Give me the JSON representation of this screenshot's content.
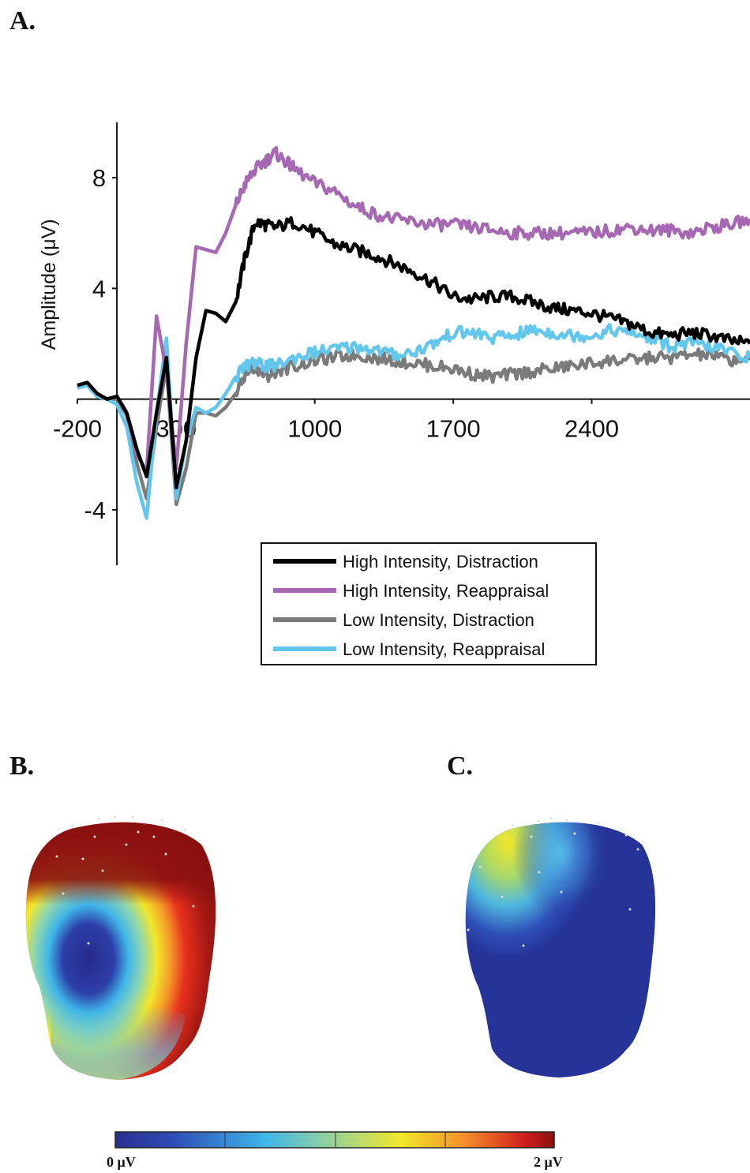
{
  "panels": {
    "a": "A.",
    "b": "B.",
    "c": "C."
  },
  "chart_data": {
    "type": "line",
    "title": "",
    "xlabel": "",
    "ylabel": "Amplitude (μV)",
    "xlim": [
      -200,
      3200
    ],
    "ylim": [
      -6,
      10
    ],
    "x_ticks": [
      -200,
      300,
      1000,
      1700,
      2400
    ],
    "y_ticks": [
      -4,
      4,
      8
    ],
    "legend_position": "bottom-center",
    "series": [
      {
        "name": "High Intensity, Distraction",
        "color": "#000000",
        "x": [
          -200,
          -150,
          -100,
          -50,
          0,
          50,
          100,
          150,
          200,
          250,
          300,
          350,
          400,
          450,
          500,
          550,
          600,
          650,
          700,
          750,
          800,
          900,
          1000,
          1100,
          1200,
          1300,
          1400,
          1500,
          1600,
          1700,
          1800,
          1900,
          2000,
          2100,
          2200,
          2300,
          2400,
          2500,
          2600,
          2700,
          2800,
          2900,
          3000,
          3100,
          3200
        ],
        "y": [
          0.5,
          0.6,
          0.2,
          0,
          0.1,
          -0.5,
          -1.8,
          -2.8,
          -0.5,
          1.5,
          -3.2,
          -1.5,
          1.5,
          3.2,
          3.1,
          2.8,
          3.5,
          5.2,
          6.4,
          6.3,
          6.2,
          6.4,
          6.0,
          5.6,
          5.4,
          5.2,
          4.9,
          4.6,
          4.2,
          3.7,
          3.6,
          3.7,
          3.7,
          3.5,
          3.3,
          3.2,
          3.1,
          2.9,
          2.7,
          2.4,
          2.3,
          2.4,
          2.3,
          2.1,
          2.0
        ]
      },
      {
        "name": "High Intensity, Reappraisal",
        "color": "#a668b2",
        "x": [
          -200,
          -150,
          -100,
          -50,
          0,
          50,
          100,
          150,
          200,
          250,
          300,
          350,
          400,
          450,
          500,
          550,
          600,
          650,
          700,
          750,
          800,
          850,
          900,
          1000,
          1100,
          1200,
          1300,
          1400,
          1500,
          1600,
          1700,
          1800,
          1900,
          2000,
          2100,
          2200,
          2300,
          2400,
          2500,
          2600,
          2700,
          2800,
          2900,
          3000,
          3100,
          3200
        ],
        "y": [
          0.5,
          0.6,
          0.2,
          0,
          0.1,
          -0.5,
          -2.0,
          -2.6,
          3.0,
          1.0,
          -2.5,
          2.0,
          5.5,
          5.4,
          5.3,
          6.0,
          7.0,
          7.8,
          8.3,
          8.6,
          8.9,
          8.6,
          8.3,
          7.8,
          7.5,
          7.0,
          6.7,
          6.5,
          6.4,
          6.3,
          6.3,
          6.2,
          6.1,
          6.0,
          6.0,
          6.0,
          6.0,
          6.0,
          6.1,
          6.2,
          6.1,
          6.1,
          6.0,
          6.2,
          6.3,
          6.5
        ]
      },
      {
        "name": "Low Intensity, Distraction",
        "color": "#7b7b7b",
        "x": [
          -200,
          -150,
          -100,
          -50,
          0,
          50,
          100,
          150,
          200,
          250,
          300,
          350,
          400,
          450,
          500,
          550,
          600,
          650,
          700,
          750,
          800,
          900,
          1000,
          1100,
          1200,
          1300,
          1400,
          1500,
          1600,
          1700,
          1800,
          1900,
          2000,
          2100,
          2200,
          2300,
          2400,
          2500,
          2600,
          2700,
          2800,
          2900,
          3000,
          3100,
          3200
        ],
        "y": [
          0.4,
          0.5,
          0.1,
          0,
          0.0,
          -0.6,
          -2.3,
          -3.6,
          -1.0,
          1.2,
          -3.8,
          -2.5,
          -0.5,
          -0.5,
          -0.6,
          -0.3,
          0.2,
          0.9,
          1.2,
          0.8,
          1.0,
          1.2,
          1.4,
          1.5,
          1.6,
          1.5,
          1.4,
          1.3,
          1.2,
          1.1,
          0.9,
          0.8,
          0.9,
          1.0,
          1.1,
          1.2,
          1.3,
          1.4,
          1.4,
          1.5,
          1.5,
          1.6,
          1.6,
          1.4,
          1.5
        ]
      },
      {
        "name": "Low Intensity, Reappraisal",
        "color": "#63c6ec",
        "x": [
          -200,
          -150,
          -100,
          -50,
          0,
          50,
          100,
          150,
          200,
          250,
          300,
          350,
          400,
          450,
          500,
          550,
          600,
          650,
          700,
          750,
          800,
          900,
          1000,
          1100,
          1200,
          1300,
          1400,
          1500,
          1600,
          1700,
          1800,
          1900,
          2000,
          2100,
          2200,
          2300,
          2400,
          2500,
          2600,
          2700,
          2800,
          2900,
          3000,
          3100,
          3200
        ],
        "y": [
          0.4,
          0.5,
          0.1,
          0,
          -0.2,
          -1.0,
          -3.0,
          -4.3,
          -0.5,
          2.2,
          -3.6,
          -1.5,
          -0.3,
          -0.5,
          -0.3,
          0.2,
          0.8,
          1.2,
          1.3,
          1.2,
          1.2,
          1.5,
          1.7,
          1.8,
          1.9,
          1.8,
          1.6,
          1.7,
          2.0,
          2.4,
          2.4,
          2.2,
          2.3,
          2.5,
          2.4,
          2.3,
          2.3,
          2.5,
          2.4,
          2.2,
          1.9,
          2.0,
          1.9,
          1.7,
          1.5
        ]
      }
    ]
  },
  "colorbar": {
    "min_label": "0 μV",
    "max_label": "2 μV",
    "colors": [
      "#2a2f8f",
      "#2e4fb8",
      "#3fb6e8",
      "#8fd0a0",
      "#f2e82a",
      "#f48c2a",
      "#d0201e",
      "#8a1010"
    ]
  },
  "topomaps": {
    "b": {
      "description_colors": [
        "#8a1010",
        "#e8301e",
        "#f2e82a",
        "#3fb6e8",
        "#2a2f8f"
      ]
    },
    "c": {
      "description_colors": [
        "#2a2f8f",
        "#2e4fb8",
        "#8fd0a0",
        "#f2e82a"
      ]
    }
  }
}
